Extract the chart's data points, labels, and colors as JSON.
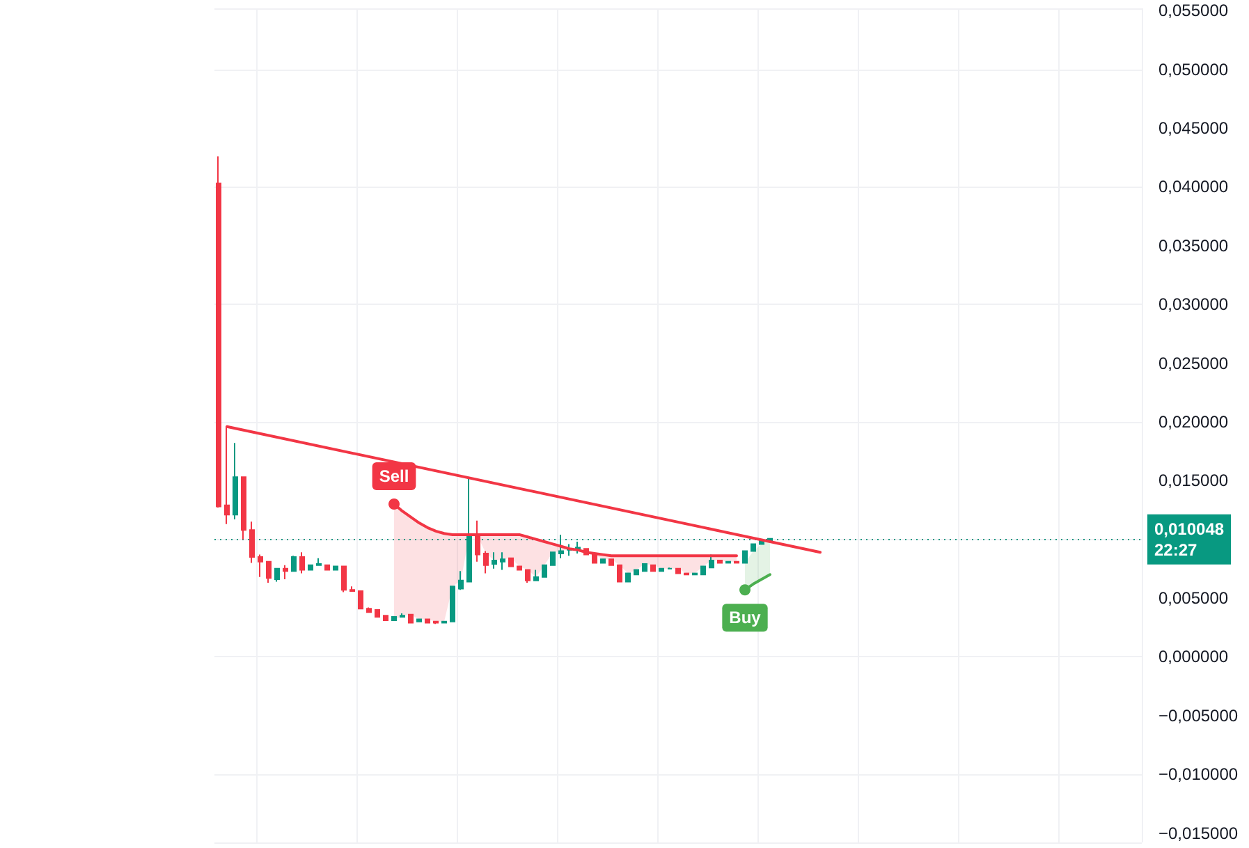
{
  "chart_data": {
    "type": "candlestick",
    "categories": [
      null,
      null,
      null,
      null,
      null,
      null,
      null,
      null,
      null,
      null,
      null,
      null,
      null,
      null,
      null,
      null,
      null,
      null,
      null,
      null,
      null,
      null,
      null,
      null,
      null,
      null,
      null,
      null,
      null,
      null,
      null,
      null,
      null,
      null,
      null,
      null,
      null,
      null,
      null,
      null,
      null,
      null,
      null,
      null,
      null,
      null,
      null,
      null,
      null,
      null,
      null,
      null,
      null,
      null,
      null,
      null,
      null,
      null,
      null,
      null,
      null,
      null,
      null,
      null,
      null,
      null,
      null,
      null,
      null,
      null,
      null,
      null,
      null,
      null,
      null,
      null,
      null,
      null,
      null,
      null,
      null,
      null,
      null,
      null,
      null,
      null,
      null,
      null,
      null,
      null,
      null,
      null,
      null,
      null,
      null,
      null,
      null,
      null,
      null,
      null,
      null,
      null,
      null,
      null,
      null,
      null,
      null,
      null,
      null,
      null,
      null
    ],
    "ohlc": [
      [
        0.0403,
        0.0426,
        0.0127,
        0.0128
      ],
      [
        0.0129,
        0.0196,
        0.0113,
        0.0121
      ],
      [
        0.0121,
        0.0182,
        0.0117,
        0.0153
      ],
      [
        0.0153,
        0.0153,
        0.01,
        0.0108
      ],
      [
        0.0108,
        0.0115,
        0.008,
        0.0085
      ],
      [
        0.0085,
        0.0087,
        0.0068,
        0.0081
      ],
      [
        0.0081,
        0.0081,
        0.0063,
        0.0067
      ],
      [
        0.0066,
        0.0075,
        0.0064,
        0.0075
      ],
      [
        0.0075,
        0.0078,
        0.0066,
        0.0073
      ],
      [
        0.0073,
        0.0086,
        0.0073,
        0.0085
      ],
      [
        0.0085,
        0.0089,
        0.0071,
        0.0074
      ],
      [
        0.0074,
        0.0078,
        0.0074,
        0.0078
      ],
      [
        0.0078,
        0.0084,
        0.0078,
        0.0079
      ],
      [
        0.0078,
        0.0078,
        0.0074,
        0.0074
      ],
      [
        0.0074,
        0.0077,
        0.0074,
        0.0077
      ],
      [
        0.0077,
        0.0077,
        0.0055,
        0.0057
      ],
      [
        0.0057,
        0.006,
        0.0056,
        0.0056
      ],
      [
        0.0056,
        0.0056,
        0.0041,
        0.0041
      ],
      [
        0.0041,
        0.0042,
        0.0038,
        0.0038
      ],
      [
        0.004,
        0.004,
        0.0034,
        0.0034
      ],
      [
        0.0035,
        0.0035,
        0.0031,
        0.0031
      ],
      [
        0.0031,
        0.0034,
        0.0031,
        0.0034
      ],
      [
        0.0034,
        0.0037,
        0.0034,
        0.0035
      ],
      [
        0.0036,
        0.0036,
        0.0029,
        0.0029
      ],
      [
        0.003,
        0.0032,
        0.003,
        0.0032
      ],
      [
        0.0032,
        0.0032,
        0.0029,
        0.0029
      ],
      [
        0.003,
        0.003,
        0.0028,
        0.0029
      ],
      [
        0.0029,
        0.003,
        0.0029,
        0.003
      ],
      [
        0.003,
        0.006,
        0.003,
        0.006
      ],
      [
        0.0058,
        0.0073,
        0.0057,
        0.0065
      ],
      [
        0.0064,
        0.0152,
        0.0064,
        0.0103
      ],
      [
        0.0103,
        0.0116,
        0.0081,
        0.0087
      ],
      [
        0.0088,
        0.009,
        0.0071,
        0.0078
      ],
      [
        0.0079,
        0.0089,
        0.0075,
        0.0082
      ],
      [
        0.0081,
        0.0089,
        0.0074,
        0.0083
      ],
      [
        0.0084,
        0.0084,
        0.0077,
        0.0077
      ],
      [
        0.0077,
        0.0077,
        0.0074,
        0.0074
      ],
      [
        0.0074,
        0.0074,
        0.0063,
        0.0065
      ],
      [
        0.0065,
        0.0074,
        0.0065,
        0.0068
      ],
      [
        0.0068,
        0.0078,
        0.0068,
        0.0078
      ],
      [
        0.0078,
        0.0089,
        0.0078,
        0.0089
      ],
      [
        0.0088,
        0.0104,
        0.0084,
        0.009
      ],
      [
        0.0091,
        0.0096,
        0.0086,
        0.0092
      ],
      [
        0.0092,
        0.0098,
        0.0088,
        0.0093
      ],
      [
        0.0092,
        0.0092,
        0.0087,
        0.0087
      ],
      [
        0.0087,
        0.0087,
        0.008,
        0.008
      ],
      [
        0.008,
        0.0083,
        0.008,
        0.0083
      ],
      [
        0.0083,
        0.0083,
        0.0078,
        0.0078
      ],
      [
        0.0078,
        0.0078,
        0.0064,
        0.0064
      ],
      [
        0.0064,
        0.0071,
        0.0064,
        0.0071
      ],
      [
        0.007,
        0.0074,
        0.007,
        0.0074
      ],
      [
        0.0073,
        0.0079,
        0.0073,
        0.0079
      ],
      [
        0.0078,
        0.0078,
        0.0073,
        0.0073
      ],
      [
        0.0073,
        0.0075,
        0.0073,
        0.0075
      ],
      [
        0.0075,
        0.0076,
        0.0075,
        0.0075
      ],
      [
        0.0075,
        0.0075,
        0.0071,
        0.0071
      ],
      [
        0.0071,
        0.0071,
        0.007,
        0.007
      ],
      [
        0.007,
        0.0071,
        0.007,
        0.0071
      ],
      [
        0.007,
        0.0077,
        0.007,
        0.0077
      ],
      [
        0.0076,
        0.0087,
        0.0076,
        0.0082
      ],
      [
        0.0082,
        0.0082,
        0.008,
        0.008
      ],
      [
        0.008,
        0.0081,
        0.008,
        0.0081
      ],
      [
        0.0081,
        0.0081,
        0.008,
        0.008
      ],
      [
        0.008,
        0.009,
        0.008,
        0.009
      ],
      [
        0.009,
        0.0096,
        0.009,
        0.0096
      ],
      [
        0.0096,
        0.0099,
        0.0096,
        0.0099
      ],
      [
        0.0099,
        0.010048,
        0.0099,
        0.010048
      ],
      null,
      null,
      null,
      null,
      null,
      null,
      null,
      null,
      null,
      null,
      null,
      null,
      null,
      null,
      null,
      null,
      null,
      null,
      null,
      null,
      null,
      null,
      null,
      null,
      null,
      null,
      null,
      null,
      null,
      null,
      null,
      null,
      null,
      null,
      null,
      null,
      null,
      null,
      null,
      null,
      null,
      null,
      null,
      null
    ],
    "series": [
      {
        "type": "line",
        "name": "Sell",
        "color": "#f23645",
        "values": [
          null,
          null,
          null,
          null,
          null,
          null,
          null,
          null,
          null,
          null,
          null,
          null,
          null,
          null,
          null,
          null,
          null,
          null,
          null,
          null,
          null,
          0.013,
          0.0124,
          0.0119,
          0.0114,
          0.011,
          0.0107,
          0.0105,
          0.0104,
          0.0104,
          0.0104,
          0.0104,
          0.0104,
          0.0104,
          0.0104,
          0.0104,
          0.0104,
          0.0102,
          0.01,
          0.0098,
          0.0096,
          0.0094,
          0.0092,
          0.0091,
          0.0089,
          0.0088,
          0.0087,
          0.0086,
          0.0086,
          0.0086,
          0.0086,
          0.0086,
          0.0086,
          0.0086,
          0.0086,
          0.0086,
          0.0086,
          0.0086,
          0.0086,
          0.0086,
          0.0086,
          0.0086,
          0.0086,
          null,
          null,
          null,
          null,
          null,
          null,
          null,
          null,
          null,
          null,
          null,
          null,
          null,
          null,
          null,
          null,
          null,
          null,
          null,
          null,
          null,
          null,
          null,
          null,
          null,
          null,
          null,
          null,
          null,
          null,
          null,
          null,
          null,
          null,
          null,
          null,
          null,
          null,
          null,
          null,
          null,
          null,
          null,
          null,
          null,
          null,
          null,
          null
        ],
        "lower": [
          null,
          null,
          null,
          null,
          null,
          null,
          null,
          null,
          null,
          null,
          null,
          null,
          null,
          null,
          null,
          null,
          null,
          null,
          null,
          null,
          null,
          0.0031,
          0.0035,
          0.0036,
          0.0032,
          0.0032,
          0.003,
          0.003,
          0.006,
          0.0065,
          0.0103,
          0.0103,
          0.0088,
          0.0082,
          0.0083,
          0.0084,
          0.0077,
          0.0074,
          0.0068,
          0.0078,
          0.0089,
          0.009,
          0.0092,
          0.0091,
          0.0089,
          0.0087,
          0.0083,
          0.0083,
          0.0078,
          0.0071,
          0.0074,
          0.0079,
          0.0078,
          0.0075,
          0.0075,
          0.0075,
          0.0071,
          0.0071,
          0.0077,
          0.0082,
          0.0082,
          0.0081,
          0.0081,
          null,
          null,
          null,
          null,
          null,
          null,
          null,
          null,
          null,
          null,
          null,
          null,
          null,
          null,
          null,
          null,
          null,
          null,
          null,
          null,
          null,
          null,
          null,
          null,
          null,
          null,
          null,
          null,
          null,
          null,
          null,
          null,
          null,
          null,
          null,
          null,
          null,
          null,
          null,
          null,
          null,
          null,
          null,
          null,
          null,
          null,
          null,
          null
        ],
        "upper": [
          null,
          null,
          null,
          null,
          null,
          null,
          null,
          null,
          null,
          null,
          null,
          null,
          null,
          null,
          null,
          null,
          null,
          null,
          null,
          null,
          null,
          0.013,
          0.0124,
          0.0119,
          0.0114,
          0.011,
          0.0107,
          0.0105,
          0.0104,
          0.0104,
          0.0104,
          0.0104,
          0.0104,
          0.0104,
          0.0104,
          0.0104,
          0.0104,
          0.0102,
          0.01,
          0.0098,
          0.0096,
          0.0094,
          0.0092,
          0.0091,
          0.0089,
          0.0088,
          0.0087,
          0.0086,
          0.0086,
          0.0086,
          0.0086,
          0.0086,
          0.0086,
          0.0086,
          0.0086,
          0.0086,
          0.0086,
          0.0086,
          0.0086,
          0.0086,
          0.0086,
          0.0086,
          0.0086,
          null,
          null,
          null,
          null,
          null,
          null,
          null,
          null,
          null,
          null,
          null,
          null,
          null,
          null,
          null,
          null,
          null,
          null,
          null,
          null,
          null,
          null,
          null,
          null,
          null,
          null,
          null,
          null,
          null,
          null,
          null,
          null,
          null,
          null,
          null,
          null,
          null,
          null,
          null,
          null,
          null,
          null,
          null,
          null,
          null,
          null,
          null,
          null
        ]
      },
      {
        "type": "line",
        "name": "Buy",
        "color": "#4caf50",
        "values": [
          null,
          null,
          null,
          null,
          null,
          null,
          null,
          null,
          null,
          null,
          null,
          null,
          null,
          null,
          null,
          null,
          null,
          null,
          null,
          null,
          null,
          null,
          null,
          null,
          null,
          null,
          null,
          null,
          null,
          null,
          null,
          null,
          null,
          null,
          null,
          null,
          null,
          null,
          null,
          null,
          null,
          null,
          null,
          null,
          null,
          null,
          null,
          null,
          null,
          null,
          null,
          null,
          null,
          null,
          null,
          null,
          null,
          null,
          null,
          null,
          null,
          null,
          null,
          0.0057,
          0.0062,
          0.0066,
          0.007,
          null,
          null,
          null,
          null,
          null,
          null,
          null,
          null,
          null,
          null,
          null,
          null,
          null,
          null,
          null,
          null,
          null,
          null,
          null,
          null,
          null,
          null,
          null,
          null,
          null,
          null,
          null,
          null,
          null,
          null,
          null,
          null,
          null,
          null,
          null,
          null,
          null,
          null,
          null,
          null,
          null,
          null,
          null,
          null
        ],
        "lower": [
          null,
          null,
          null,
          null,
          null,
          null,
          null,
          null,
          null,
          null,
          null,
          null,
          null,
          null,
          null,
          null,
          null,
          null,
          null,
          null,
          null,
          null,
          null,
          null,
          null,
          null,
          null,
          null,
          null,
          null,
          null,
          null,
          null,
          null,
          null,
          null,
          null,
          null,
          null,
          null,
          null,
          null,
          null,
          null,
          null,
          null,
          null,
          null,
          null,
          null,
          null,
          null,
          null,
          null,
          null,
          null,
          null,
          null,
          null,
          null,
          null,
          null,
          null,
          0.0057,
          0.0062,
          0.0066,
          0.007,
          null,
          null,
          null,
          null,
          null,
          null,
          null,
          null,
          null,
          null,
          null,
          null,
          null,
          null,
          null,
          null,
          null,
          null,
          null,
          null,
          null,
          null,
          null,
          null,
          null,
          null,
          null,
          null,
          null,
          null,
          null,
          null,
          null,
          null,
          null,
          null,
          null,
          null,
          null,
          null,
          null,
          null,
          null,
          null
        ],
        "upper": [
          null,
          null,
          null,
          null,
          null,
          null,
          null,
          null,
          null,
          null,
          null,
          null,
          null,
          null,
          null,
          null,
          null,
          null,
          null,
          null,
          null,
          null,
          null,
          null,
          null,
          null,
          null,
          null,
          null,
          null,
          null,
          null,
          null,
          null,
          null,
          null,
          null,
          null,
          null,
          null,
          null,
          null,
          null,
          null,
          null,
          null,
          null,
          null,
          null,
          null,
          null,
          null,
          null,
          null,
          null,
          null,
          null,
          null,
          null,
          null,
          null,
          null,
          null,
          0.008,
          0.009,
          0.0096,
          0.0099,
          null,
          null,
          null,
          null,
          null,
          null,
          null,
          null,
          null,
          null,
          null,
          null,
          null,
          null,
          null,
          null,
          null,
          null,
          null,
          null,
          null,
          null,
          null,
          null,
          null,
          null,
          null,
          null,
          null,
          null,
          null,
          null,
          null,
          null,
          null,
          null,
          null,
          null,
          null,
          null,
          null,
          null,
          null,
          null
        ]
      },
      {
        "type": "line",
        "color": "#f23645",
        "values": [
          null,
          0.0196,
          null,
          null,
          null,
          null,
          null,
          null,
          null,
          null,
          null,
          null,
          null,
          null,
          null,
          null,
          null,
          null,
          null,
          null,
          null,
          null,
          null,
          null,
          null,
          null,
          null,
          null,
          null,
          null,
          null,
          null,
          null,
          null,
          null,
          null,
          null,
          null,
          null,
          null,
          null,
          null,
          null,
          null,
          null,
          null,
          null,
          null,
          null,
          null,
          null,
          null,
          null,
          null,
          null,
          null,
          null,
          null,
          null,
          null,
          null,
          null,
          null,
          null,
          null,
          null,
          null,
          null,
          null,
          null,
          null,
          null,
          0.0089,
          null,
          null,
          null,
          null,
          null,
          null,
          null,
          null,
          null,
          null,
          null,
          null,
          null,
          null,
          null,
          null,
          null,
          null,
          null,
          null,
          null,
          null,
          null,
          null,
          null,
          null,
          null,
          null,
          null,
          null,
          null,
          null,
          null,
          null,
          null,
          null,
          null,
          null
        ]
      }
    ],
    "ref_lines": [
      {
        "axis": "y",
        "value": 0.010048,
        "label": "0,010048\n22:27",
        "color": "#089981",
        "line_style": "dotted"
      }
    ],
    "ylim": [
      -0.0158,
      0.0552
    ],
    "yticks": [
      {
        "value": -0.015,
        "label": "−0,015000"
      },
      {
        "value": -0.01,
        "label": "−0,010000"
      },
      {
        "value": -0.005,
        "label": "−0,005000"
      },
      {
        "value": 0,
        "label": "0,000000"
      },
      {
        "value": 0.005,
        "label": "0,005000"
      },
      {
        "value": 0.01,
        "label": null
      },
      {
        "value": 0.015,
        "label": "0,015000"
      },
      {
        "value": 0.02,
        "label": "0,020000"
      },
      {
        "value": 0.025,
        "label": "0,025000"
      },
      {
        "value": 0.03,
        "label": "0,030000"
      },
      {
        "value": 0.035,
        "label": "0,035000"
      },
      {
        "value": 0.04,
        "label": "0,040000"
      },
      {
        "value": 0.045,
        "label": "0,045000"
      },
      {
        "value": 0.05,
        "label": "0,050000"
      },
      {
        "value": 0.055,
        "label": "0,055000"
      }
    ],
    "tick_labels": "y",
    "grid": true
  }
}
